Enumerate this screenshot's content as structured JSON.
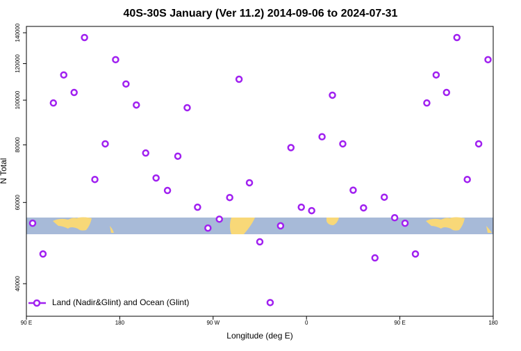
{
  "chart_data": {
    "type": "scatter",
    "title": "40S-30S January (Ver 11.2)   2014-09-06 to 2024-07-31",
    "x_label": "Longitude (deg E)",
    "y_label": "N Total",
    "x": [
      96,
      106,
      116,
      126,
      136,
      146,
      156,
      166,
      176,
      186,
      196,
      205,
      215,
      226,
      236,
      245,
      255,
      265,
      276,
      286,
      295,
      305,
      315,
      325,
      335,
      345,
      355,
      365,
      375,
      385,
      395,
      405,
      415,
      426,
      435,
      445,
      455,
      465,
      476,
      485,
      495,
      505,
      515,
      526,
      535
    ],
    "series": [
      {
        "name": "Land (Nadir&Glint) and Ocean (Glint)",
        "color": "#a020f0",
        "values": [
          54100,
          46400,
          98600,
          113400,
          103900,
          136700,
          67300,
          80400,
          122400,
          108400,
          97600,
          76800,
          67800,
          63700,
          75600,
          96300,
          58600,
          52800,
          55200,
          61500,
          111000,
          66200,
          49300,
          36400,
          53400,
          78900,
          58600,
          57600,
          83300,
          102500,
          80400,
          63800,
          58400,
          45500,
          61600,
          55600,
          54100,
          46400,
          98600,
          113400,
          103900,
          136700,
          67300,
          80400,
          122400
        ]
      }
    ],
    "xlim": [
      90,
      540
    ],
    "xticks": [
      {
        "value": 90,
        "label": "90 E"
      },
      180,
      {
        "value": 270,
        "label": "90 W"
      },
      {
        "value": 360,
        "label": "0"
      },
      {
        "value": 450,
        "label": "90 E"
      },
      {
        "value": 540,
        "label": "180"
      }
    ],
    "ylim": [
      34000,
      144500
    ],
    "yticks": [
      40000,
      60000,
      80000,
      100000,
      120000,
      140000
    ],
    "log_y": true,
    "legend": "bottom-left"
  }
}
